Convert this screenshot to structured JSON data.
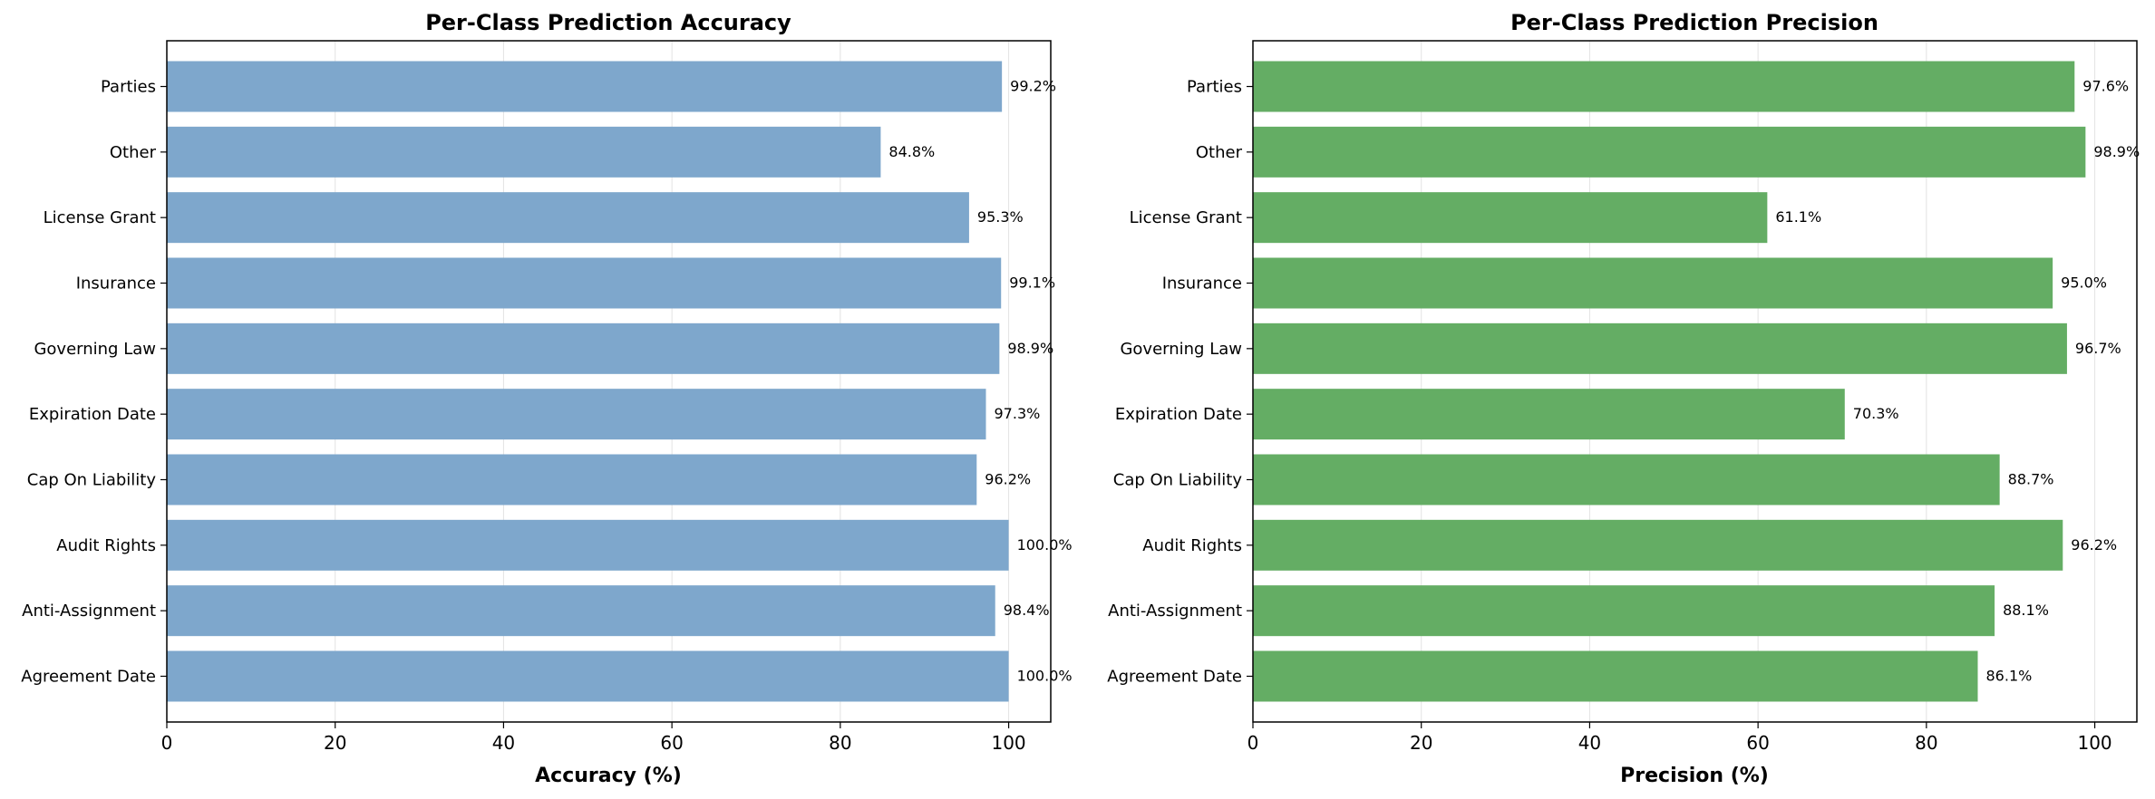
{
  "chart_data": [
    {
      "type": "bar",
      "orientation": "horizontal",
      "title": "Per-Class Prediction Accuracy",
      "xlabel": "Accuracy (%)",
      "ylabel": "",
      "xlim": [
        0,
        105
      ],
      "xticks": [
        "0",
        "20",
        "40",
        "60",
        "80",
        "100"
      ],
      "grid": "vertical",
      "bar_color": "#7ea7cc",
      "categories": [
        "Agreement Date",
        "Anti-Assignment",
        "Audit Rights",
        "Cap On Liability",
        "Expiration Date",
        "Governing Law",
        "Insurance",
        "License Grant",
        "Other",
        "Parties"
      ],
      "values": [
        100.0,
        98.4,
        100.0,
        96.2,
        97.3,
        98.9,
        99.1,
        95.3,
        84.8,
        99.2
      ],
      "data_labels": [
        "100.0%",
        "98.4%",
        "100.0%",
        "96.2%",
        "97.3%",
        "98.9%",
        "99.1%",
        "95.3%",
        "84.8%",
        "99.2%"
      ]
    },
    {
      "type": "bar",
      "orientation": "horizontal",
      "title": "Per-Class Prediction Precision",
      "xlabel": "Precision (%)",
      "ylabel": "",
      "xlim": [
        0,
        105
      ],
      "xticks": [
        "0",
        "20",
        "40",
        "60",
        "80",
        "100"
      ],
      "grid": "vertical",
      "bar_color": "#64ad64",
      "categories": [
        "Agreement Date",
        "Anti-Assignment",
        "Audit Rights",
        "Cap On Liability",
        "Expiration Date",
        "Governing Law",
        "Insurance",
        "License Grant",
        "Other",
        "Parties"
      ],
      "values": [
        86.1,
        88.1,
        96.2,
        88.7,
        70.3,
        96.7,
        95.0,
        61.1,
        98.9,
        97.6
      ],
      "data_labels": [
        "86.1%",
        "88.1%",
        "96.2%",
        "88.7%",
        "70.3%",
        "96.7%",
        "95.0%",
        "61.1%",
        "98.9%",
        "97.6%"
      ]
    }
  ]
}
